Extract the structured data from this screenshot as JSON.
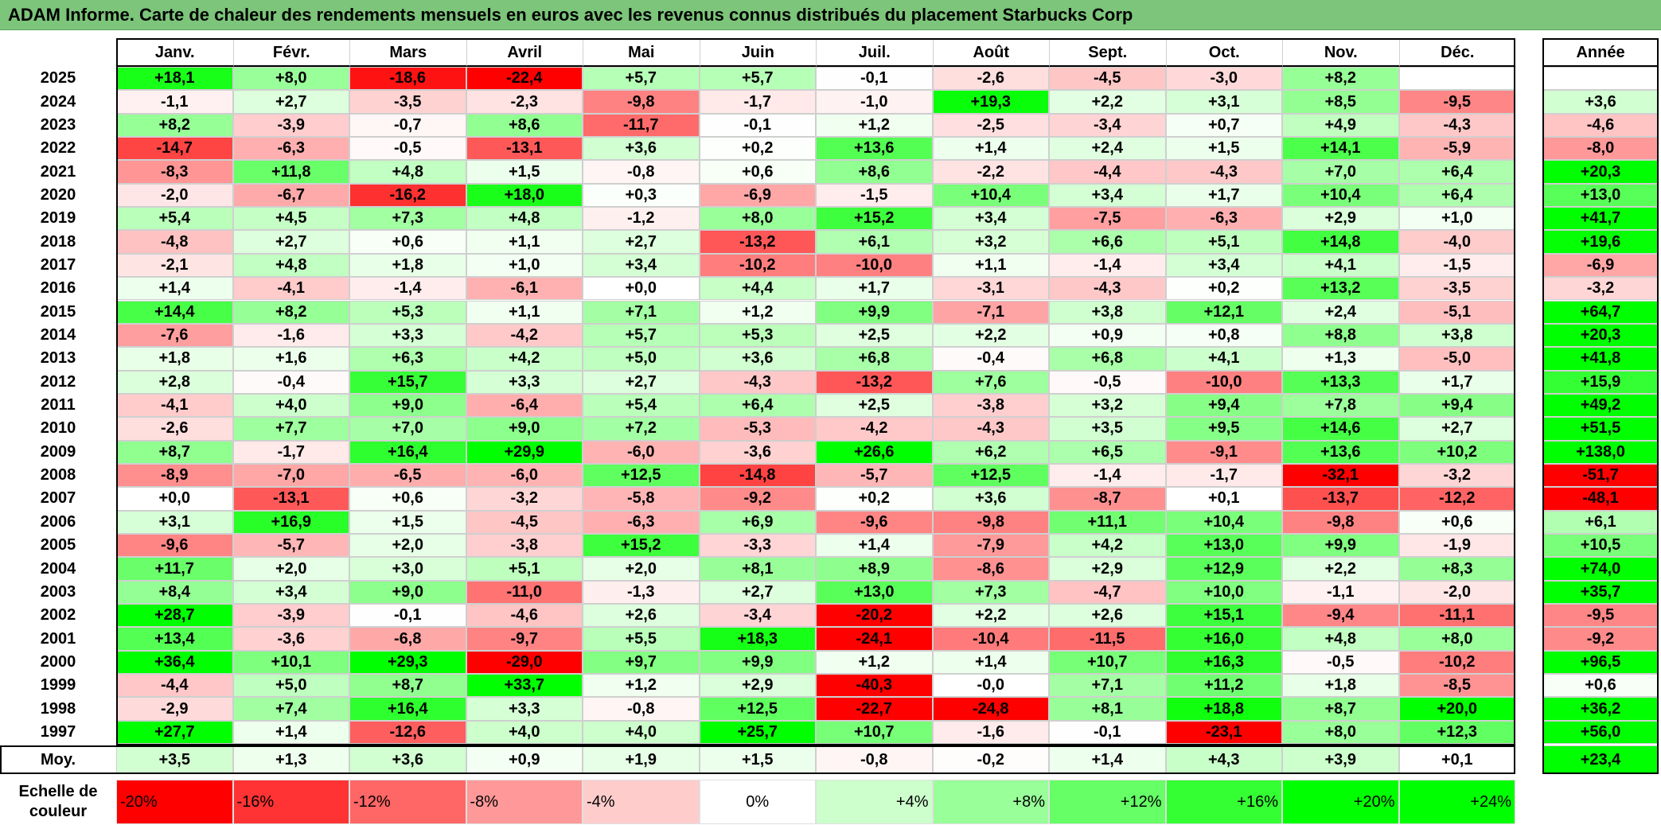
{
  "title": "ADAM Informe. Carte de chaleur des rendements mensuels en euros avec les revenus connus distribués du placement Starbucks Corp",
  "chart_data": {
    "type": "heatmap",
    "title": "ADAM Informe. Carte de chaleur des rendements mensuels en euros avec les revenus connus distribués du placement Starbucks Corp",
    "months": [
      "Janv.",
      "Févr.",
      "Mars",
      "Avril",
      "Mai",
      "Juin",
      "Juil.",
      "Août",
      "Sept.",
      "Oct.",
      "Nov.",
      "Déc."
    ],
    "annual_label": "Année",
    "years": [
      {
        "year": "2025",
        "values": [
          "+18,1",
          "+8,0",
          "-18,6",
          "-22,4",
          "+5,7",
          "+5,7",
          "-0,1",
          "-2,6",
          "-4,5",
          "-3,0",
          "+8,2",
          ""
        ],
        "annual": ""
      },
      {
        "year": "2024",
        "values": [
          "-1,1",
          "+2,7",
          "-3,5",
          "-2,3",
          "-9,8",
          "-1,7",
          "-1,0",
          "+19,3",
          "+2,2",
          "+3,1",
          "+8,5",
          "-9,5"
        ],
        "annual": "+3,6"
      },
      {
        "year": "2023",
        "values": [
          "+8,2",
          "-3,9",
          "-0,7",
          "+8,6",
          "-11,7",
          "-0,1",
          "+1,2",
          "-2,5",
          "-3,4",
          "+0,7",
          "+4,9",
          "-4,3"
        ],
        "annual": "-4,6"
      },
      {
        "year": "2022",
        "values": [
          "-14,7",
          "-6,3",
          "-0,5",
          "-13,1",
          "+3,6",
          "+0,2",
          "+13,6",
          "+1,4",
          "+2,4",
          "+1,5",
          "+14,1",
          "-5,9"
        ],
        "annual": "-8,0"
      },
      {
        "year": "2021",
        "values": [
          "-8,3",
          "+11,8",
          "+4,8",
          "+1,5",
          "-0,8",
          "+0,6",
          "+8,6",
          "-2,2",
          "-4,4",
          "-4,3",
          "+7,0",
          "+6,4"
        ],
        "annual": "+20,3"
      },
      {
        "year": "2020",
        "values": [
          "-2,0",
          "-6,7",
          "-16,2",
          "+18,0",
          "+0,3",
          "-6,9",
          "-1,5",
          "+10,4",
          "+3,4",
          "+1,7",
          "+10,4",
          "+6,4"
        ],
        "annual": "+13,0"
      },
      {
        "year": "2019",
        "values": [
          "+5,4",
          "+4,5",
          "+7,3",
          "+4,8",
          "-1,2",
          "+8,0",
          "+15,2",
          "+3,4",
          "-7,5",
          "-6,3",
          "+2,9",
          "+1,0"
        ],
        "annual": "+41,7"
      },
      {
        "year": "2018",
        "values": [
          "-4,8",
          "+2,7",
          "+0,6",
          "+1,1",
          "+2,7",
          "-13,2",
          "+6,1",
          "+3,2",
          "+6,6",
          "+5,1",
          "+14,8",
          "-4,0"
        ],
        "annual": "+19,6"
      },
      {
        "year": "2017",
        "values": [
          "-2,1",
          "+4,8",
          "+1,8",
          "+1,0",
          "+3,4",
          "-10,2",
          "-10,0",
          "+1,1",
          "-1,4",
          "+3,4",
          "+4,1",
          "-1,5"
        ],
        "annual": "-6,9"
      },
      {
        "year": "2016",
        "values": [
          "+1,4",
          "-4,1",
          "-1,4",
          "-6,1",
          "+0,0",
          "+4,4",
          "+1,7",
          "-3,1",
          "-4,3",
          "+0,2",
          "+13,2",
          "-3,5"
        ],
        "annual": "-3,2"
      },
      {
        "year": "2015",
        "values": [
          "+14,4",
          "+8,2",
          "+5,3",
          "+1,1",
          "+7,1",
          "+1,2",
          "+9,9",
          "-7,1",
          "+3,8",
          "+12,1",
          "+2,4",
          "-5,1"
        ],
        "annual": "+64,7"
      },
      {
        "year": "2014",
        "values": [
          "-7,6",
          "-1,6",
          "+3,3",
          "-4,2",
          "+5,7",
          "+5,3",
          "+2,5",
          "+2,2",
          "+0,9",
          "+0,8",
          "+8,8",
          "+3,8"
        ],
        "annual": "+20,3"
      },
      {
        "year": "2013",
        "values": [
          "+1,8",
          "+1,6",
          "+6,3",
          "+4,2",
          "+5,0",
          "+3,6",
          "+6,8",
          "-0,4",
          "+6,8",
          "+4,1",
          "+1,3",
          "-5,0"
        ],
        "annual": "+41,8"
      },
      {
        "year": "2012",
        "values": [
          "+2,8",
          "-0,4",
          "+15,7",
          "+3,3",
          "+2,7",
          "-4,3",
          "-13,2",
          "+7,6",
          "-0,5",
          "-10,0",
          "+13,3",
          "+1,7"
        ],
        "annual": "+15,9"
      },
      {
        "year": "2011",
        "values": [
          "-4,1",
          "+4,0",
          "+9,0",
          "-6,4",
          "+5,4",
          "+6,4",
          "+2,5",
          "-3,8",
          "+3,2",
          "+9,4",
          "+7,8",
          "+9,4"
        ],
        "annual": "+49,2"
      },
      {
        "year": "2010",
        "values": [
          "-2,6",
          "+7,7",
          "+7,0",
          "+9,0",
          "+7,2",
          "-5,3",
          "-4,2",
          "-4,3",
          "+3,5",
          "+9,5",
          "+14,6",
          "+2,7"
        ],
        "annual": "+51,5"
      },
      {
        "year": "2009",
        "values": [
          "+8,7",
          "-1,7",
          "+16,4",
          "+29,9",
          "-6,0",
          "-3,6",
          "+26,6",
          "+6,2",
          "+6,5",
          "-9,1",
          "+13,6",
          "+10,2"
        ],
        "annual": "+138,0"
      },
      {
        "year": "2008",
        "values": [
          "-8,9",
          "-7,0",
          "-6,5",
          "-6,0",
          "+12,5",
          "-14,8",
          "-5,7",
          "+12,5",
          "-1,4",
          "-1,7",
          "-32,1",
          "-3,2"
        ],
        "annual": "-51,7"
      },
      {
        "year": "2007",
        "values": [
          "+0,0",
          "-13,1",
          "+0,6",
          "-3,2",
          "-5,8",
          "-9,2",
          "+0,2",
          "+3,6",
          "-8,7",
          "+0,1",
          "-13,7",
          "-12,2"
        ],
        "annual": "-48,1"
      },
      {
        "year": "2006",
        "values": [
          "+3,1",
          "+16,9",
          "+1,5",
          "-4,5",
          "-6,3",
          "+6,9",
          "-9,6",
          "-9,8",
          "+11,1",
          "+10,4",
          "-9,8",
          "+0,6"
        ],
        "annual": "+6,1"
      },
      {
        "year": "2005",
        "values": [
          "-9,6",
          "-5,7",
          "+2,0",
          "-3,8",
          "+15,2",
          "-3,3",
          "+1,4",
          "-7,9",
          "+4,2",
          "+13,0",
          "+9,9",
          "-1,9"
        ],
        "annual": "+10,5"
      },
      {
        "year": "2004",
        "values": [
          "+11,7",
          "+2,0",
          "+3,0",
          "+5,1",
          "+2,0",
          "+8,1",
          "+8,9",
          "-8,6",
          "+2,9",
          "+12,9",
          "+2,2",
          "+8,3"
        ],
        "annual": "+74,0"
      },
      {
        "year": "2003",
        "values": [
          "+8,4",
          "+3,4",
          "+9,0",
          "-11,0",
          "-1,3",
          "+2,7",
          "+13,0",
          "+7,3",
          "-4,7",
          "+10,0",
          "-1,1",
          "-2,0"
        ],
        "annual": "+35,7"
      },
      {
        "year": "2002",
        "values": [
          "+28,7",
          "-3,9",
          "-0,1",
          "-4,6",
          "+2,6",
          "-3,4",
          "-20,2",
          "+2,2",
          "+2,6",
          "+15,1",
          "-9,4",
          "-11,1"
        ],
        "annual": "-9,5"
      },
      {
        "year": "2001",
        "values": [
          "+13,4",
          "-3,6",
          "-6,8",
          "-9,7",
          "+5,5",
          "+18,3",
          "-24,1",
          "-10,4",
          "-11,5",
          "+16,0",
          "+4,8",
          "+8,0"
        ],
        "annual": "-9,2"
      },
      {
        "year": "2000",
        "values": [
          "+36,4",
          "+10,1",
          "+29,3",
          "-29,0",
          "+9,7",
          "+9,9",
          "+1,2",
          "+1,4",
          "+10,7",
          "+16,3",
          "-0,5",
          "-10,2"
        ],
        "annual": "+96,5"
      },
      {
        "year": "1999",
        "values": [
          "-4,4",
          "+5,0",
          "+8,7",
          "+33,7",
          "+1,2",
          "+2,9",
          "-40,3",
          "-0,0",
          "+7,1",
          "+11,2",
          "+1,8",
          "-8,5"
        ],
        "annual": "+0,6"
      },
      {
        "year": "1998",
        "values": [
          "-2,9",
          "+7,4",
          "+16,4",
          "+3,3",
          "-0,8",
          "+12,5",
          "-22,7",
          "-24,8",
          "+8,1",
          "+18,8",
          "+8,7",
          "+20,0"
        ],
        "annual": "+36,2"
      },
      {
        "year": "1997",
        "values": [
          "+27,7",
          "+1,4",
          "-12,6",
          "+4,0",
          "+4,0",
          "+25,7",
          "+10,7",
          "-1,6",
          "-0,1",
          "-23,1",
          "+8,0",
          "+12,3"
        ],
        "annual": "+56,0"
      }
    ],
    "average": {
      "label": "Moy.",
      "values": [
        "+3,5",
        "+1,3",
        "+3,6",
        "+0,9",
        "+1,9",
        "+1,5",
        "-0,8",
        "-0,2",
        "+1,4",
        "+4,3",
        "+3,9",
        "+0,1"
      ],
      "annual": "+23,4"
    },
    "legend": {
      "label": "Echelle de couleur",
      "steps": [
        "-20%",
        "-16%",
        "-12%",
        "-8%",
        "-4%",
        "0%",
        "+4%",
        "+8%",
        "+12%",
        "+16%",
        "+20%",
        "+24%"
      ]
    },
    "scale": {
      "negative_full": -20,
      "positive_full": 20,
      "positive_color": "#00ff00",
      "negative_color": "#ff0000",
      "neutral_color": "#ffffff"
    }
  }
}
